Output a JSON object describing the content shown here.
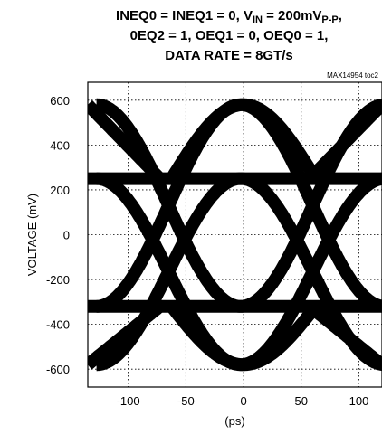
{
  "chart_data": {
    "type": "line",
    "title_lines": [
      "INEQ0 = INEQ1 = 0, V",
      "0EQ2 = 1, OEQ1 = 0, OEQ0 = 1,",
      "DATA RATE = 8GT/s"
    ],
    "title_vin_sub": "IN",
    "title_vin_rest": " = 200mV",
    "title_ppsub": "P-P",
    "title_tail": ",",
    "figure_code": "MAX14954 toc2",
    "xlabel": "(ps)",
    "ylabel": "VOLTAGE (mV)",
    "xlim": [
      -135,
      120
    ],
    "ylim": [
      -680,
      680
    ],
    "x_ticks": [
      -100,
      -50,
      0,
      50,
      100
    ],
    "y_ticks": [
      600,
      400,
      200,
      0,
      -200,
      -400,
      -600
    ],
    "x_tick_labels": [
      "-100",
      "-50",
      "0",
      "50",
      "100"
    ],
    "y_tick_labels": [
      "600",
      "400",
      "200",
      "0",
      "-200",
      "-400",
      "-600"
    ],
    "grid": true,
    "eye_pattern": {
      "unit_interval_ps": 125,
      "crossings_ps": [
        -65,
        60
      ],
      "settled_high_mv": 250,
      "settled_low_mv": -320,
      "peak_high_mv": 580,
      "peak_low_mv": -580
    }
  }
}
